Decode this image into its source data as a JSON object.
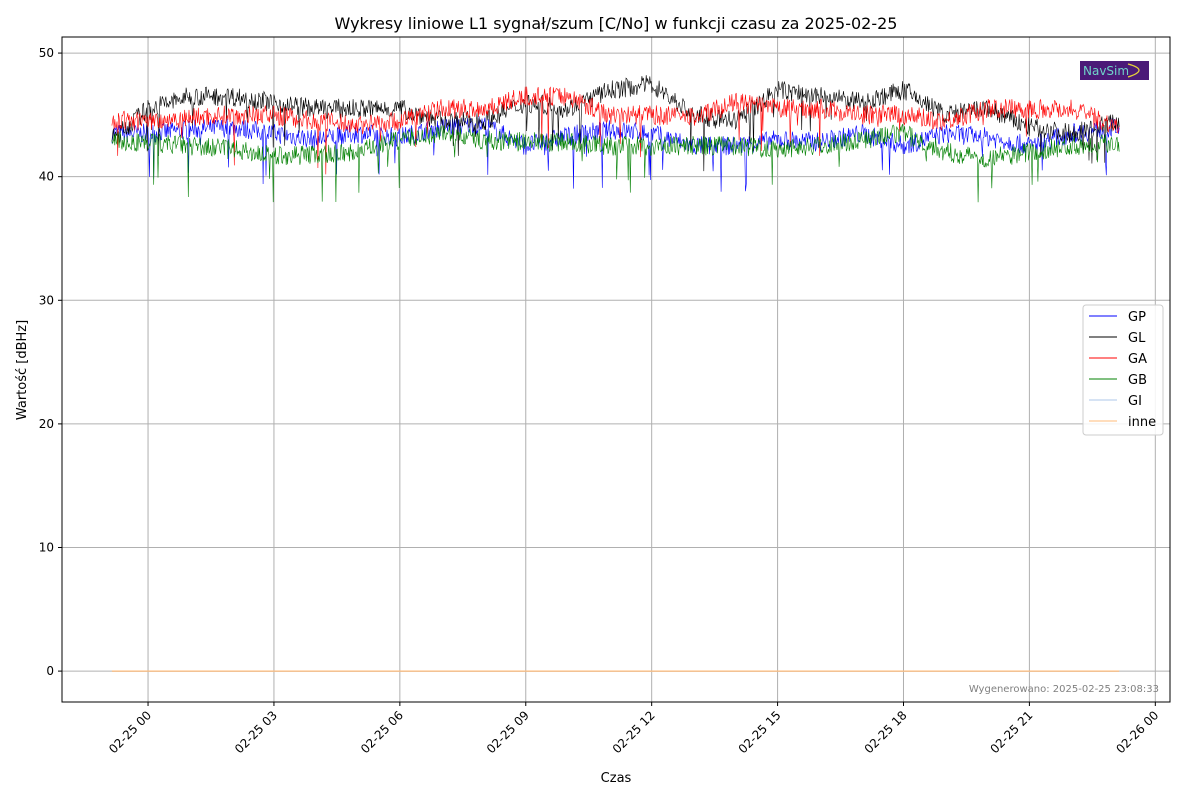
{
  "chart_data": {
    "type": "line",
    "title": "Wykresy liniowe L1 sygnał/szum [C/No] w funkcji czasu za 2025-02-25",
    "xlabel": "Czas",
    "ylabel": "Wartość [dBHz]",
    "ylim": [
      -2.5,
      51.3
    ],
    "xlim_hours": [
      -2.05,
      24.35
    ],
    "yticks": [
      0,
      10,
      20,
      30,
      40,
      50
    ],
    "ytick_labels": [
      "0",
      "10",
      "20",
      "30",
      "40",
      "50"
    ],
    "xticks_hours": [
      0,
      3,
      6,
      9,
      12,
      15,
      18,
      21,
      24
    ],
    "xtick_labels": [
      "02-25 00",
      "02-25 03",
      "02-25 06",
      "02-25 09",
      "02-25 12",
      "02-25 15",
      "02-25 18",
      "02-25 21",
      "02-26 00"
    ],
    "grid": true,
    "legend_position": "center-right",
    "x_hours": [
      -0.86,
      0,
      1,
      2,
      3,
      4,
      5,
      6,
      7,
      8,
      9,
      10,
      11,
      12,
      13,
      14,
      15,
      16,
      17,
      18,
      19,
      20,
      21,
      22,
      23.14
    ],
    "series": [
      {
        "name": "GP",
        "color": "#0000ff",
        "values": [
          43.5,
          43.5,
          43.8,
          44,
          43.5,
          43,
          43.5,
          43.2,
          44,
          44.2,
          42.5,
          43.3,
          43.8,
          43.5,
          42.5,
          42.5,
          43,
          42.8,
          43.5,
          42.5,
          43.5,
          43.2,
          42.5,
          43.5,
          44
        ]
      },
      {
        "name": "GL",
        "color": "#000000",
        "values": [
          43,
          45.5,
          46.5,
          46.5,
          46,
          45.5,
          45.5,
          45.5,
          44.5,
          44.5,
          46,
          45.5,
          47,
          47.5,
          45,
          44.5,
          47,
          46.5,
          46,
          47,
          45,
          45.5,
          44,
          43.5,
          44.5
        ]
      },
      {
        "name": "GA",
        "color": "#ff0000",
        "values": [
          44.5,
          44.5,
          44.8,
          45,
          45,
          44.5,
          44.2,
          44.5,
          45.5,
          45.5,
          46.5,
          46.5,
          45,
          45,
          44.8,
          46,
          45.5,
          45.5,
          45,
          45,
          44.5,
          45.5,
          45.5,
          45.5,
          44
        ]
      },
      {
        "name": "GB",
        "color": "#008000",
        "values": [
          42.8,
          42.8,
          42.5,
          42.2,
          41.7,
          41.8,
          42,
          43,
          43.5,
          43,
          42.8,
          42.8,
          42.5,
          42.5,
          42.5,
          42.5,
          42.3,
          42.5,
          43,
          43.5,
          42,
          41.5,
          42,
          42.5,
          42.8
        ]
      },
      {
        "name": "GI",
        "color": "#aec7e8",
        "values": [
          0,
          0,
          0,
          0,
          0,
          0,
          0,
          0,
          0,
          0,
          0,
          0,
          0,
          0,
          0,
          0,
          0,
          0,
          0,
          0,
          0,
          0,
          0,
          0,
          0
        ]
      },
      {
        "name": "inne",
        "color": "#ffbb78",
        "values": [
          0,
          0,
          0,
          0,
          0,
          0,
          0,
          0,
          0,
          0,
          0,
          0,
          0,
          0,
          0,
          0,
          0,
          0,
          0,
          0,
          0,
          0,
          0,
          0,
          0
        ]
      }
    ],
    "annotation": "Wygenerowano: 2025-02-25 23:08:33",
    "logo_text": "NavSim"
  }
}
